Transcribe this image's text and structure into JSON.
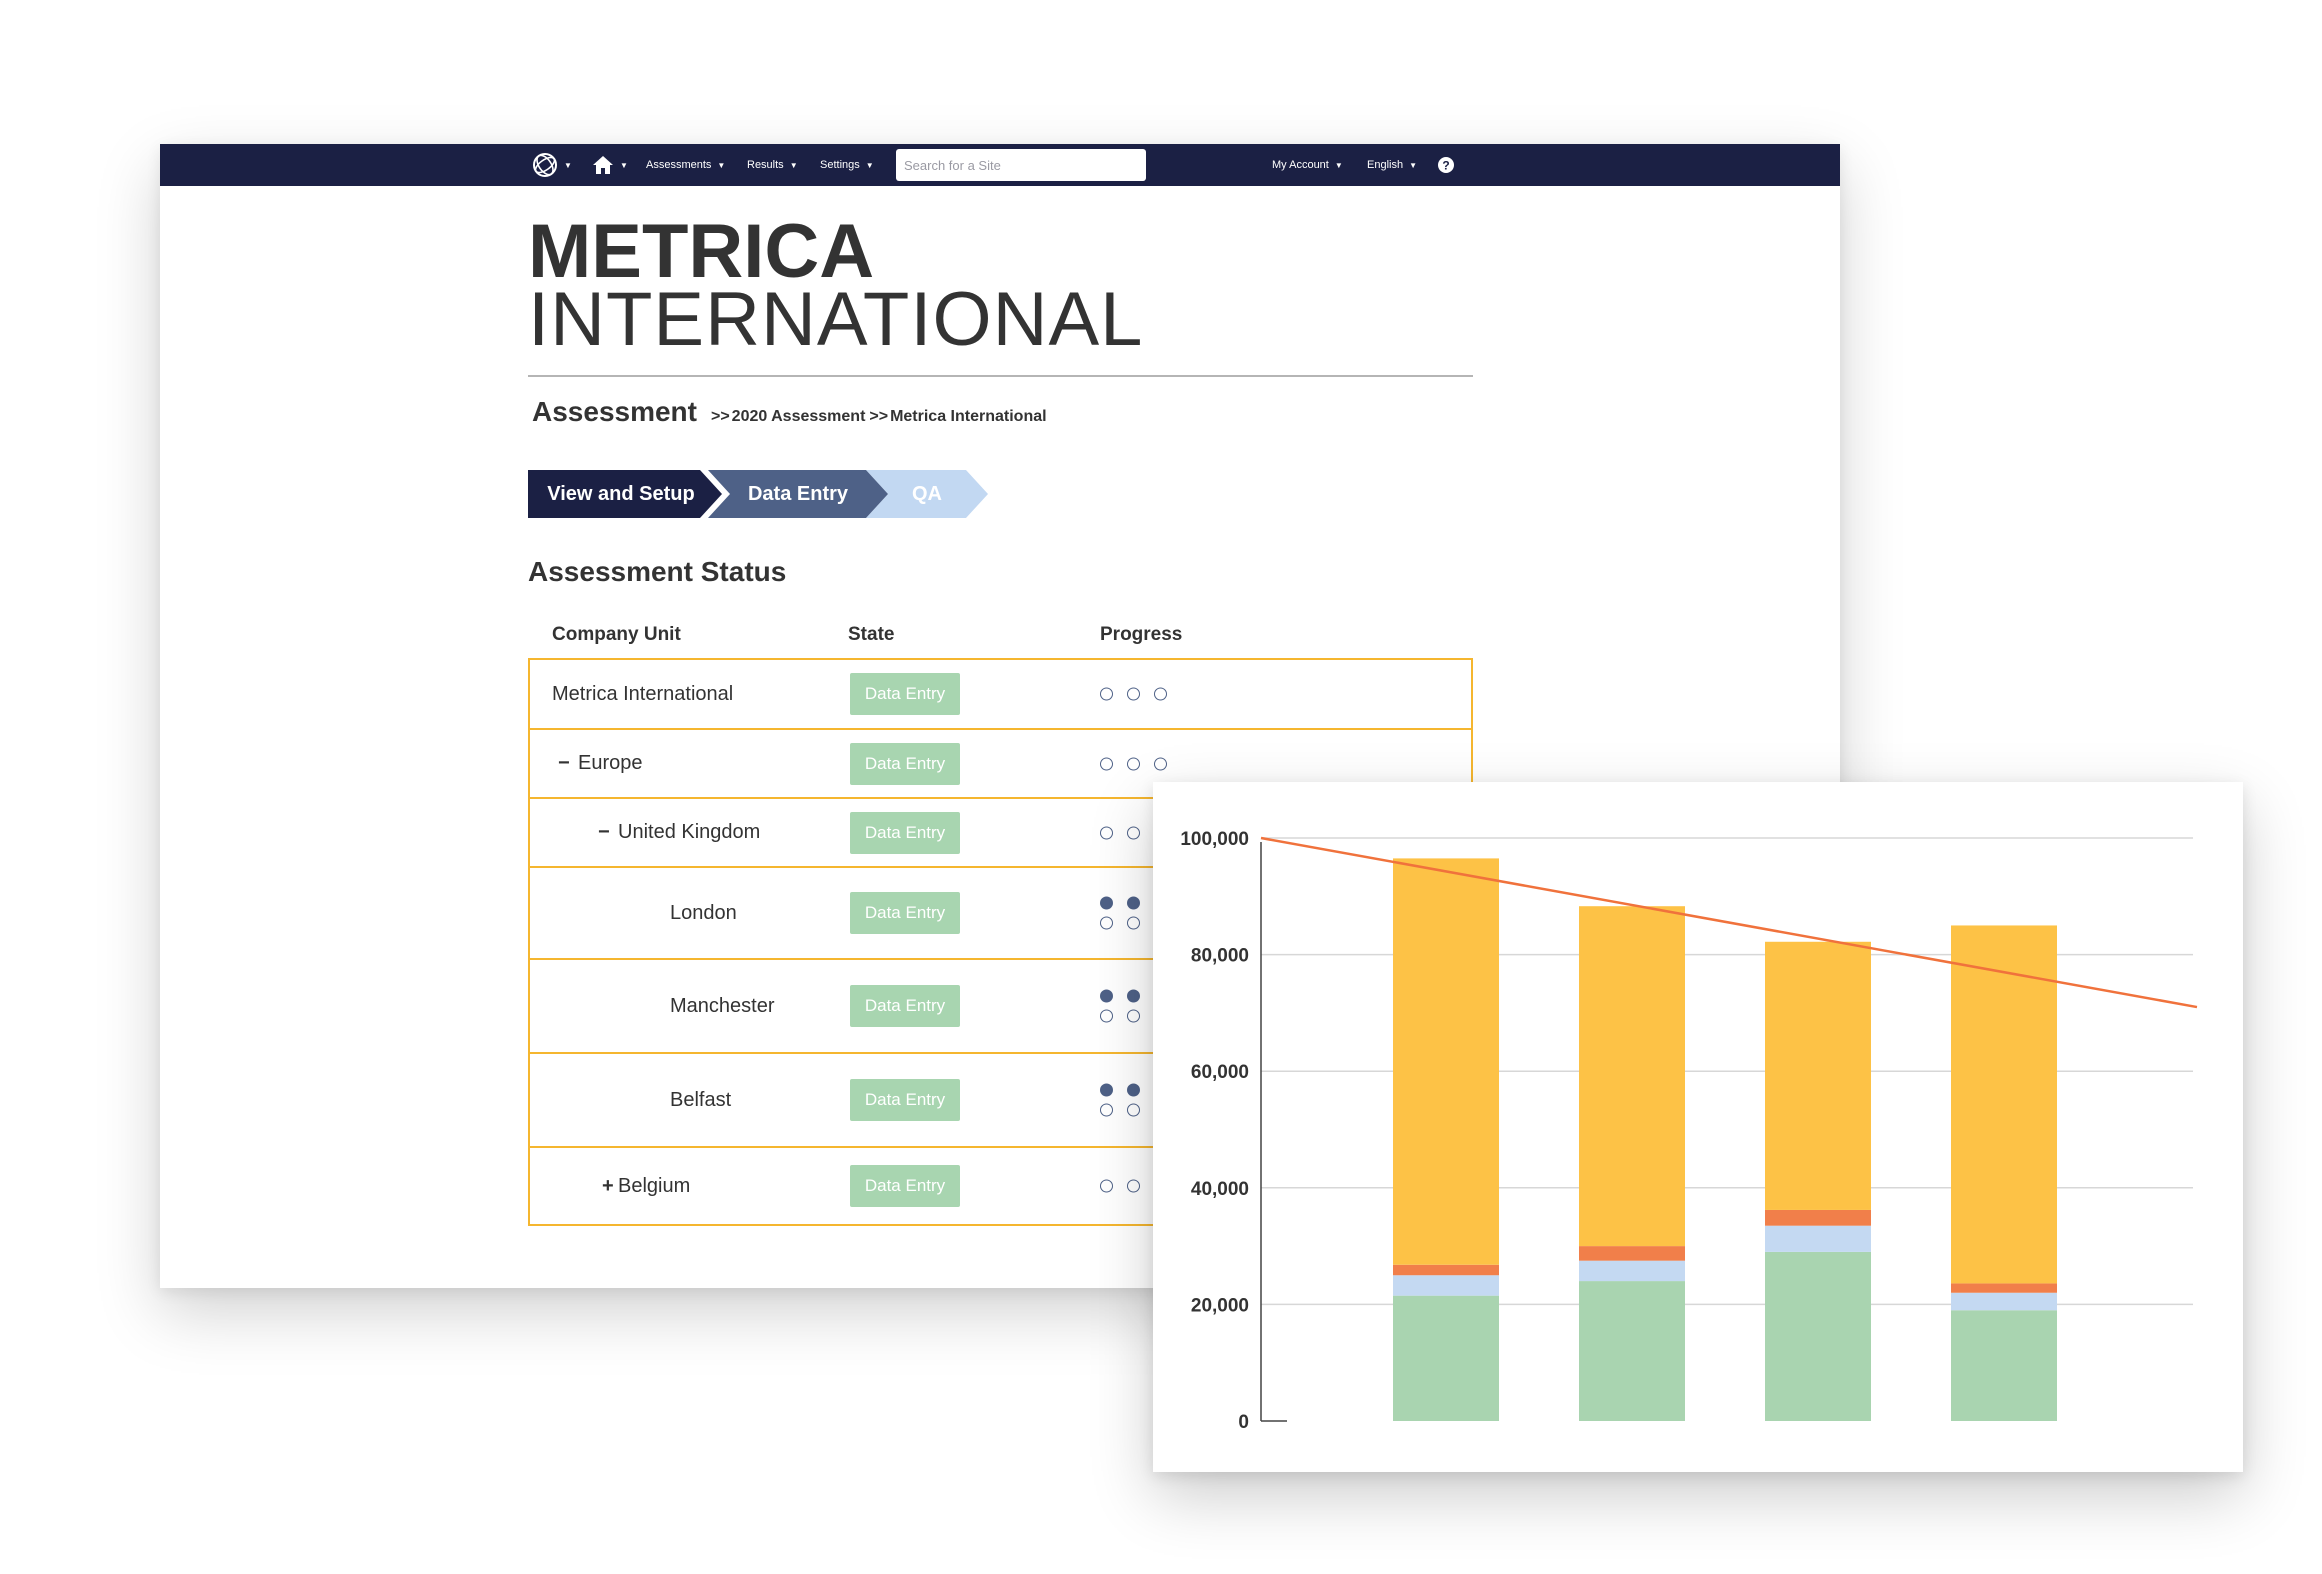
{
  "nav": {
    "items": [
      {
        "label": "Assessments"
      },
      {
        "label": "Results"
      },
      {
        "label": "Settings"
      }
    ],
    "search_placeholder": "Search for a Site",
    "account_label": "My Account",
    "language_label": "English",
    "icons": [
      "globe-logo-icon",
      "home-icon",
      "help-icon"
    ]
  },
  "brand": {
    "line1": "METRICA",
    "line2": "INTERNATIONAL"
  },
  "breadcrumb": {
    "title": "Assessment",
    "sep": ">>",
    "items": [
      "2020 Assessment",
      "Metrica International"
    ]
  },
  "steps": [
    "View and Setup",
    "Data Entry",
    "QA"
  ],
  "status": {
    "title": "Assessment Status",
    "columns": [
      "Company Unit",
      "State",
      "Progress"
    ],
    "rows": [
      {
        "unit": "Metrica International",
        "toggle": "",
        "state": "Data Entry"
      },
      {
        "unit": "Europe",
        "toggle": "−",
        "state": "Data Entry"
      },
      {
        "unit": "United Kingdom",
        "toggle": "−",
        "state": "Data Entry"
      },
      {
        "unit": "London",
        "toggle": "",
        "state": "Data Entry"
      },
      {
        "unit": "Manchester",
        "toggle": "",
        "state": "Data Entry"
      },
      {
        "unit": "Belfast",
        "toggle": "",
        "state": "Data Entry"
      },
      {
        "unit": "Belgium",
        "toggle": "+",
        "state": "Data Entry"
      }
    ]
  },
  "colors": {
    "navy": "#1b2044",
    "slate": "#4e6187",
    "light_blue": "#c2d8f2",
    "table_border": "#f5b62f",
    "badge_green": "#a8d5b0"
  },
  "chart_data": {
    "type": "bar",
    "stacked": true,
    "categories": [
      "",
      "",
      "",
      ""
    ],
    "series": [
      {
        "color": "#a9d4b0",
        "values": [
          21500,
          24000,
          29000,
          19000
        ]
      },
      {
        "color": "#c4d9f2",
        "values": [
          3500,
          3500,
          4500,
          3000
        ]
      },
      {
        "color": "#f17f4a",
        "values": [
          1800,
          2500,
          2700,
          1600
        ]
      },
      {
        "color": "#fdc246",
        "values": [
          69700,
          58300,
          46000,
          61400
        ]
      }
    ],
    "trend_line": {
      "color": "#f0723c",
      "start": 100000,
      "end": 71000
    },
    "ylim": [
      0,
      100000
    ],
    "yticks": [
      "0",
      "20,000",
      "40,000",
      "60,000",
      "80,000",
      "100,000"
    ],
    "grid": true,
    "title": "",
    "xlabel": "",
    "ylabel": ""
  }
}
